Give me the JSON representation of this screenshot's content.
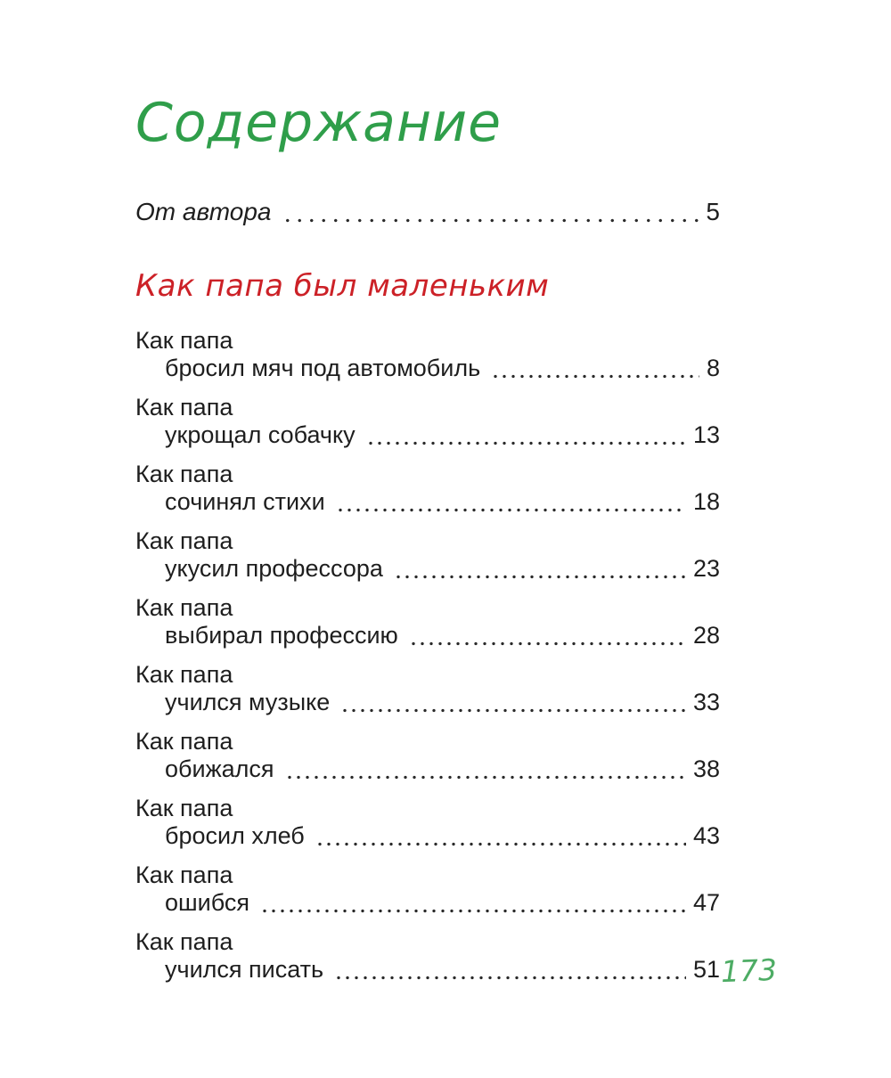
{
  "toc": {
    "title": "Содержание",
    "front_item": {
      "label": "От автора",
      "page": "5"
    },
    "section": {
      "heading": "Как папа был маленьким"
    },
    "entries": [
      {
        "line1": "Как папа",
        "line2": "бросил мяч под автомобиль",
        "page": "8"
      },
      {
        "line1": "Как папа",
        "line2": "укрощал собачку",
        "page": "13"
      },
      {
        "line1": "Как папа",
        "line2": "сочинял стихи",
        "page": "18"
      },
      {
        "line1": "Как папа",
        "line2": "укусил профессора",
        "page": "23"
      },
      {
        "line1": "Как папа",
        "line2": "выбирал профессию",
        "page": "28"
      },
      {
        "line1": "Как папа",
        "line2": "учился музыке",
        "page": "33"
      },
      {
        "line1": "Как папа",
        "line2": "обижался",
        "page": "38"
      },
      {
        "line1": "Как папа",
        "line2": "бросил хлеб",
        "page": "43"
      },
      {
        "line1": "Как папа",
        "line2": "ошибся",
        "page": "47"
      },
      {
        "line1": "Как папа",
        "line2": "учился писать",
        "page": "51"
      }
    ],
    "folio": "173",
    "colors": {
      "title_green": "#2f9e4a",
      "heading_red": "#cc2127",
      "body_text": "#1e1e1e"
    }
  }
}
